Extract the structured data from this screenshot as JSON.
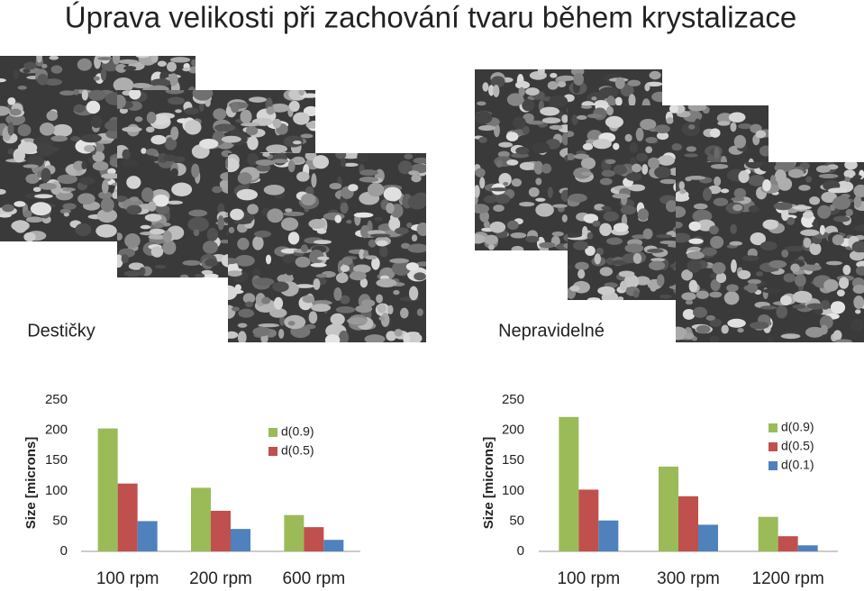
{
  "title": "Úprava velikosti při zachování tvaru během krystalizace",
  "labels": [
    "Destičky",
    "Nepravidelné"
  ],
  "chart_data": [
    {
      "type": "bar",
      "ylabel": "Size [microns]",
      "categories": [
        "100 rpm",
        "200 rpm",
        "600 rpm"
      ],
      "series": [
        {
          "name": "d(0.9)",
          "color": "#9bbb59",
          "values": [
            203,
            105,
            60
          ]
        },
        {
          "name": "d(0.5)",
          "color": "#c0504d",
          "values": [
            112,
            67,
            40
          ]
        },
        {
          "color": "#4f81bd",
          "values": [
            50,
            37,
            19
          ]
        }
      ],
      "ylim": [
        0,
        250
      ],
      "yticks": [
        0,
        50,
        100,
        150,
        200,
        250
      ]
    },
    {
      "type": "bar",
      "ylabel": "Size [microns]",
      "categories": [
        "100 rpm",
        "300 rpm",
        "1200 rpm"
      ],
      "series": [
        {
          "name": "d(0.9)",
          "color": "#9bbb59",
          "values": [
            222,
            140,
            57
          ]
        },
        {
          "name": "d(0.5)",
          "color": "#c0504d",
          "values": [
            102,
            91,
            25
          ]
        },
        {
          "name": "d(0.1)",
          "color": "#4f81bd",
          "values": [
            51,
            44,
            10
          ]
        }
      ],
      "ylim": [
        0,
        250
      ],
      "yticks": [
        0,
        50,
        100,
        150,
        200,
        250
      ]
    }
  ]
}
